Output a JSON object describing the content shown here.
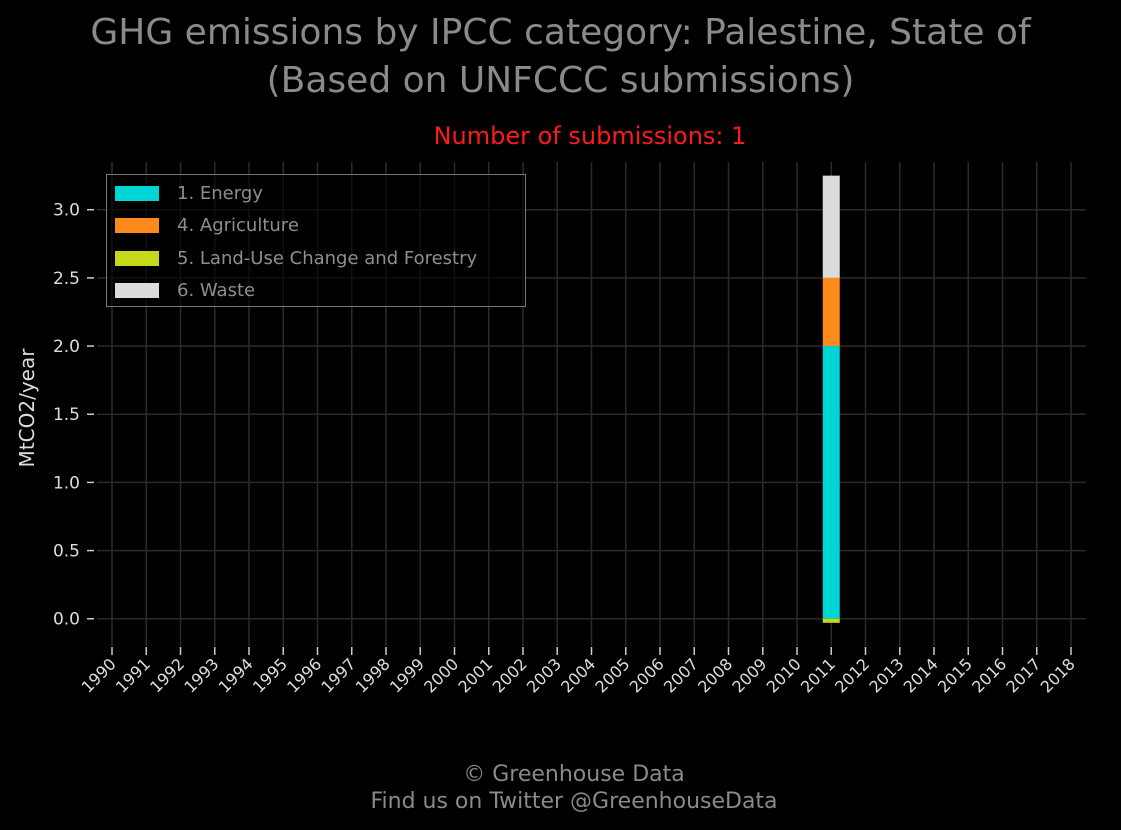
{
  "title_line1": "GHG emissions by IPCC category: Palestine, State of",
  "title_line2": "(Based on UNFCCC submissions)",
  "subtitle": "Number of submissions: 1",
  "footer_line1": "© Greenhouse Data",
  "footer_line2": "Find us on Twitter @GreenhouseData",
  "colors": {
    "energy": "#00d5d5",
    "agriculture": "#ff8a1c",
    "lucf": "#c6d81a",
    "waste": "#dcdcdc",
    "grid": "#2a2a2a",
    "subtitle": "#ff1a1a"
  },
  "chart_data": {
    "type": "bar",
    "stacked": true,
    "xlabel": "",
    "ylabel": "MtCO2/year",
    "ylim": [
      -0.2,
      3.35
    ],
    "yticks": [
      "0.0",
      "0.5",
      "1.0",
      "1.5",
      "2.0",
      "2.5",
      "3.0"
    ],
    "grid": true,
    "legend_position": "top-left",
    "categories": [
      "1990",
      "1991",
      "1992",
      "1993",
      "1994",
      "1995",
      "1996",
      "1997",
      "1998",
      "1999",
      "2000",
      "2001",
      "2002",
      "2003",
      "2004",
      "2005",
      "2006",
      "2007",
      "2008",
      "2009",
      "2010",
      "2011",
      "2012",
      "2013",
      "2014",
      "2015",
      "2016",
      "2017",
      "2018"
    ],
    "series": [
      {
        "name": "1. Energy",
        "color": "#00d5d5",
        "values": [
          0,
          0,
          0,
          0,
          0,
          0,
          0,
          0,
          0,
          0,
          0,
          0,
          0,
          0,
          0,
          0,
          0,
          0,
          0,
          0,
          0,
          2.0,
          0,
          0,
          0,
          0,
          0,
          0,
          0
        ]
      },
      {
        "name": "4. Agriculture",
        "color": "#ff8a1c",
        "values": [
          0,
          0,
          0,
          0,
          0,
          0,
          0,
          0,
          0,
          0,
          0,
          0,
          0,
          0,
          0,
          0,
          0,
          0,
          0,
          0,
          0,
          0.5,
          0,
          0,
          0,
          0,
          0,
          0,
          0
        ]
      },
      {
        "name": "5. Land-Use Change and Forestry",
        "color": "#c6d81a",
        "values": [
          0,
          0,
          0,
          0,
          0,
          0,
          0,
          0,
          0,
          0,
          0,
          0,
          0,
          0,
          0,
          0,
          0,
          0,
          0,
          0,
          0,
          -0.03,
          0,
          0,
          0,
          0,
          0,
          0,
          0
        ]
      },
      {
        "name": "6. Waste",
        "color": "#dcdcdc",
        "values": [
          0,
          0,
          0,
          0,
          0,
          0,
          0,
          0,
          0,
          0,
          0,
          0,
          0,
          0,
          0,
          0,
          0,
          0,
          0,
          0,
          0,
          0.75,
          0,
          0,
          0,
          0,
          0,
          0,
          0
        ]
      }
    ]
  }
}
